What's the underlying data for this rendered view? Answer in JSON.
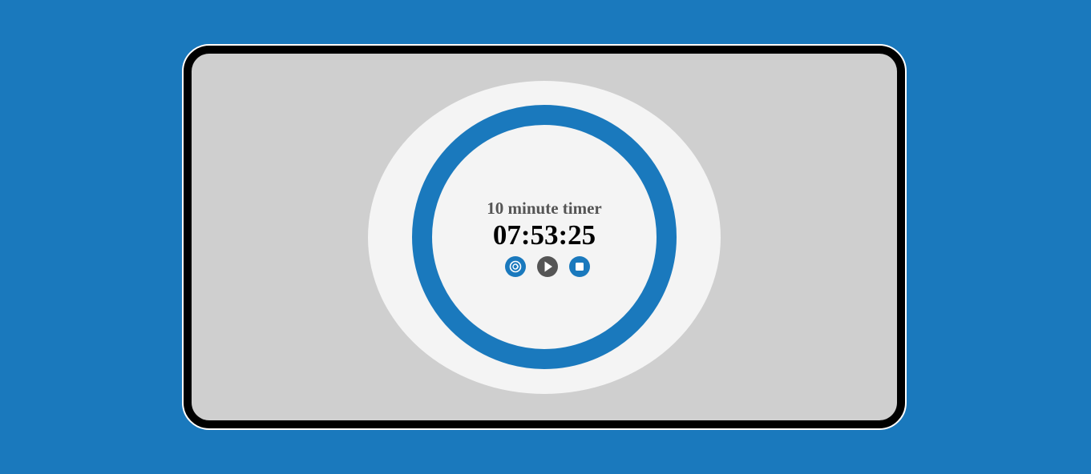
{
  "timer": {
    "title": "10 minute timer",
    "time": "07:53:25"
  },
  "controls": {
    "reset_icon": "reset-icon",
    "play_icon": "play-icon",
    "stop_icon": "stop-icon"
  },
  "colors": {
    "background": "#1a79bd",
    "accent": "#1a79bd",
    "play_button": "#555555",
    "screen": "#cfcfcf",
    "face": "#f4f4f4"
  }
}
